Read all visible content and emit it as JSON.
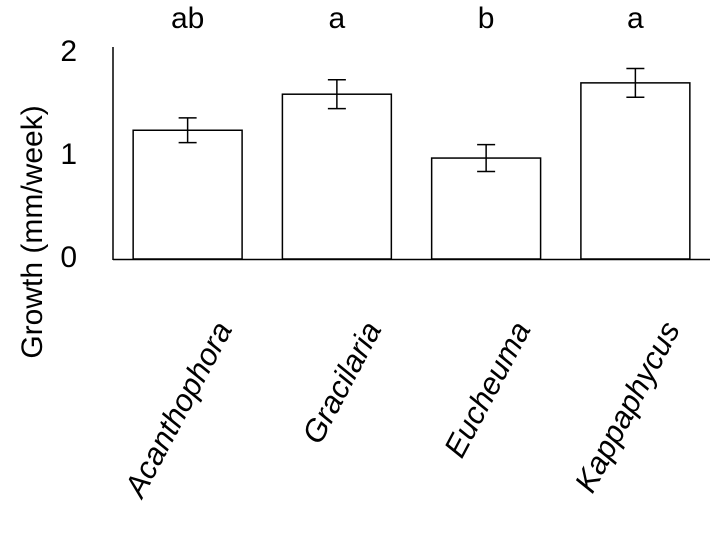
{
  "chart_data": {
    "type": "bar",
    "categories": [
      "Acanthophora",
      "Gracilaria",
      "Eucheuma",
      "Kappaphycus"
    ],
    "values": [
      1.25,
      1.6,
      0.98,
      1.71
    ],
    "errors": [
      0.12,
      0.14,
      0.13,
      0.14
    ],
    "significance": [
      "ab",
      "a",
      "b",
      "a"
    ],
    "title": "",
    "xlabel": "",
    "ylabel": "Growth (mm/week)",
    "ylim": [
      0,
      2
    ],
    "yticks": [
      "0",
      "1",
      "2"
    ],
    "grid": false,
    "legend": "none",
    "bar_fill": "#ffffff",
    "bar_stroke": "#000000"
  }
}
